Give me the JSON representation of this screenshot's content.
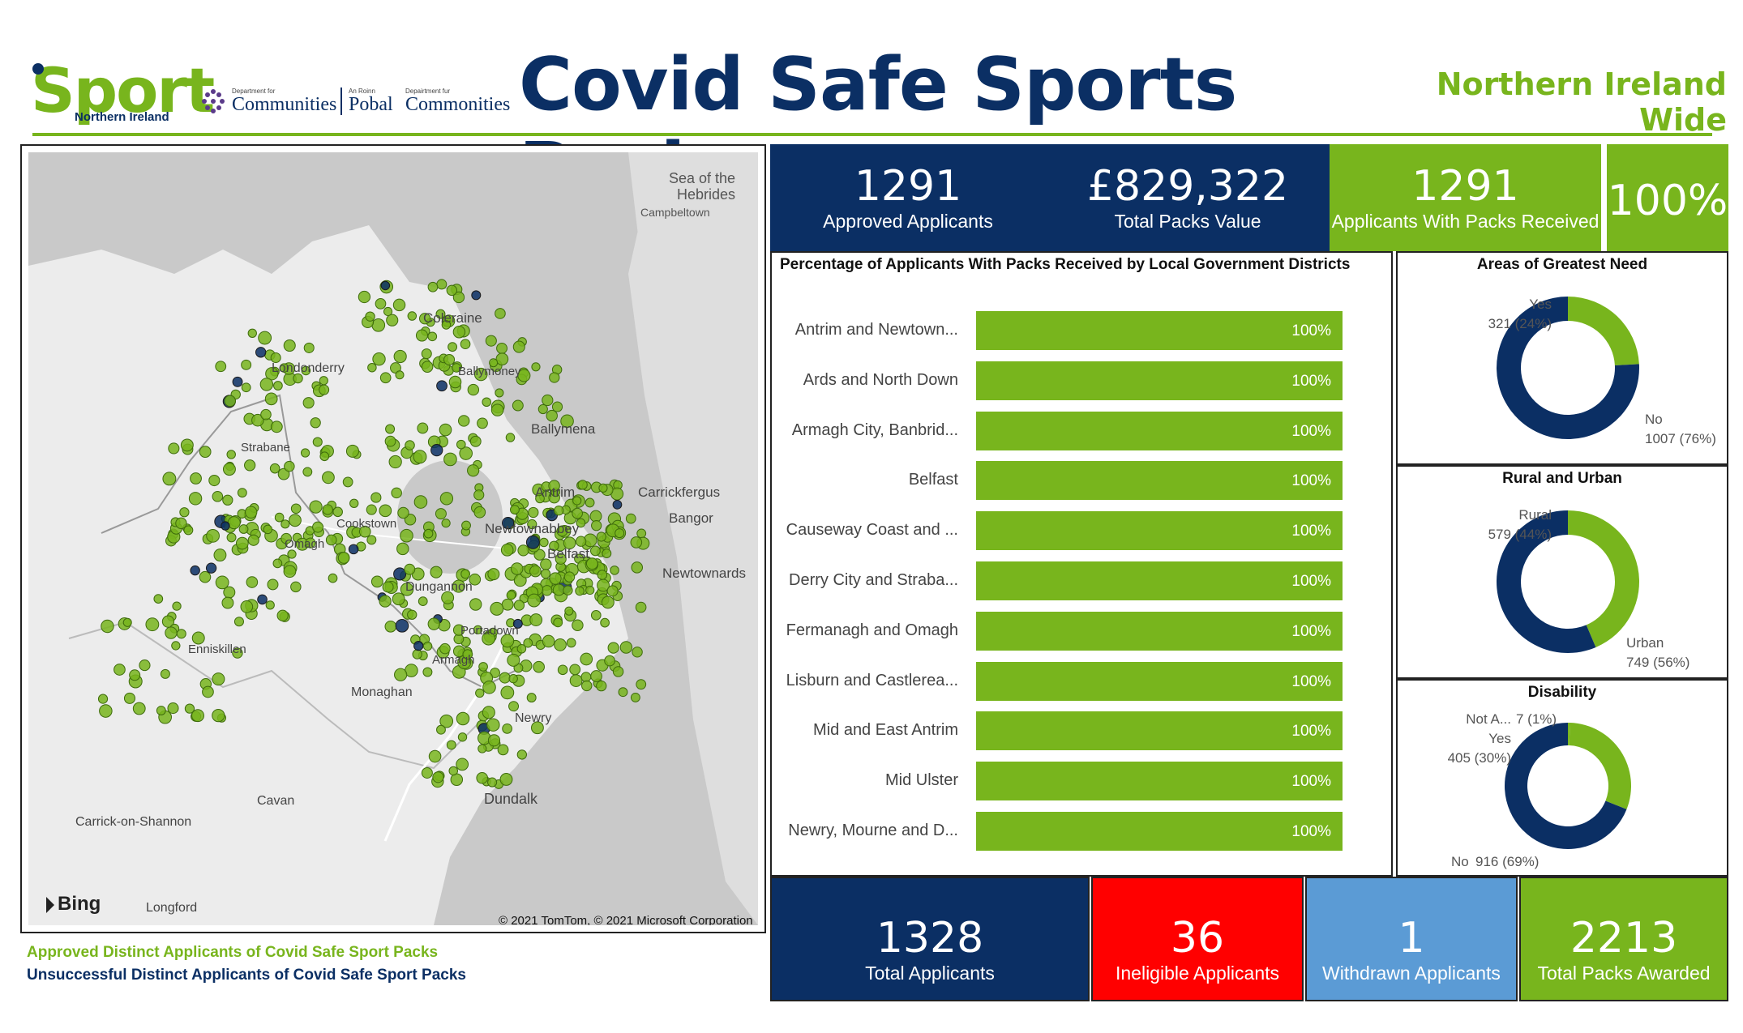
{
  "header": {
    "title": "Covid Safe Sports Pack",
    "region": "Northern Ireland Wide",
    "logo_sport": "Sport",
    "logo_sport_sub": "Northern Ireland",
    "dept_small_1": "Department for",
    "dept_big_1": "Communities",
    "dept_small_2": "An Roinn",
    "dept_big_2": "Pobal",
    "dept_small_3": "Depairtment fur",
    "dept_big_3": "Commonities"
  },
  "map": {
    "place_labels": {
      "sea": "Sea of the",
      "sea2": "Hebrides",
      "campbeltown": "Campbeltown",
      "coleraine": "Coleraine",
      "londonderry": "Londonderry",
      "ballymoney": "Ballymoney",
      "ballymena": "Ballymena",
      "strabane": "Strabane",
      "antrim": "Antrim",
      "carrickfergus": "Carrickfergus",
      "bangor": "Bangor",
      "cookstown": "Cookstown",
      "newtownabbey": "Newtownabbey",
      "belfast": "Belfast",
      "newtownards": "Newtownards",
      "omagh": "Omagh",
      "dungannon": "Dungannon",
      "enniskillen": "Enniskillen",
      "portadown": "Portadown",
      "armagh": "Armagh",
      "monaghan": "Monaghan",
      "newry": "Newry",
      "dundalk": "Dundalk",
      "cavan": "Cavan",
      "carrick": "Carrick-on-Shannon",
      "longford": "Longford"
    },
    "bing": "Bing",
    "copyright": "© 2021 TomTom, © 2021 Microsoft Corporation",
    "approved_color": "#78b51d",
    "unsuccessful_color": "#0b2f64"
  },
  "legend": {
    "approved": "Approved Distinct Applicants of Covid Safe Sport Packs",
    "unsuccessful": "Unsuccessful Distinct Applicants of Covid Safe Sport Packs"
  },
  "kpis_top": [
    {
      "value": "1291",
      "label": "Approved Applicants"
    },
    {
      "value": "£829,322",
      "label": "Total Packs Value"
    },
    {
      "value": "1291",
      "label": "Applicants With Packs Received"
    },
    {
      "value": "100%",
      "label": ""
    }
  ],
  "kpis_bottom": [
    {
      "value": "1328",
      "label": "Total Applicants"
    },
    {
      "value": "36",
      "label": "Ineligible Applicants"
    },
    {
      "value": "1",
      "label": "Withdrawn Applicants"
    },
    {
      "value": "2213",
      "label": "Total Packs Awarded"
    }
  ],
  "chart_data": [
    {
      "type": "bar",
      "title": "Percentage of Applicants With Packs Received by Local Government Districts",
      "categories": [
        "Antrim and Newtown...",
        "Ards and North Down",
        "Armagh City, Banbrid...",
        "Belfast",
        "Causeway Coast and ...",
        "Derry City and Straba...",
        "Fermanagh and Omagh",
        "Lisburn and Castlerea...",
        "Mid and East Antrim",
        "Mid Ulster",
        "Newry, Mourne and D..."
      ],
      "values": [
        100,
        100,
        100,
        100,
        100,
        100,
        100,
        100,
        100,
        100,
        100
      ],
      "value_labels": [
        "100%",
        "100%",
        "100%",
        "100%",
        "100%",
        "100%",
        "100%",
        "100%",
        "100%",
        "100%",
        "100%"
      ],
      "xlim": [
        0,
        100
      ]
    },
    {
      "type": "pie",
      "title": "Areas of Greatest Need",
      "slices": [
        {
          "name": "Yes",
          "value": 321,
          "label": "321 (24%)",
          "color": "#78b51d"
        },
        {
          "name": "No",
          "value": 1007,
          "label": "1007 (76%)",
          "color": "#0b2f64"
        }
      ]
    },
    {
      "type": "pie",
      "title": "Rural and Urban",
      "slices": [
        {
          "name": "Rural",
          "value": 579,
          "label": "579 (44%)",
          "color": "#78b51d"
        },
        {
          "name": "Urban",
          "value": 749,
          "label": "749 (56%)",
          "color": "#0b2f64"
        }
      ]
    },
    {
      "type": "pie",
      "title": "Disability",
      "slices": [
        {
          "name": "Not A...",
          "value": 7,
          "label": "7 (1%)",
          "color": "#78b51d"
        },
        {
          "name": "Yes",
          "value": 405,
          "label": "405 (30%)",
          "color": "#78b51d"
        },
        {
          "name": "No",
          "value": 916,
          "label": "916 (69%)",
          "color": "#0b2f64"
        }
      ]
    }
  ]
}
